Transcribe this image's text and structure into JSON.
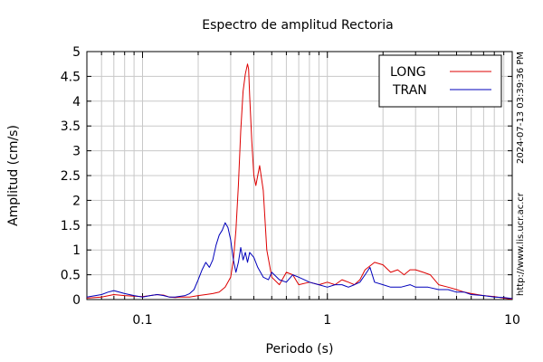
{
  "chart_data": {
    "type": "line",
    "title": "Espectro de amplitud Rectoria",
    "xlabel": "Periodo (s)",
    "ylabel": "Amplitud (cm/s)",
    "xscale": "log",
    "xlim": [
      0.05,
      10
    ],
    "ylim": [
      0,
      5
    ],
    "grid": true,
    "legend_position": "top-right",
    "x_tick_labels": [
      "0.1",
      "1",
      "10"
    ],
    "x_tick_values": [
      0.1,
      1,
      10
    ],
    "y_tick_labels": [
      "0",
      "0.5",
      "1",
      "1.5",
      "2",
      "2.5",
      "3",
      "3.5",
      "4",
      "4.5",
      "5"
    ],
    "y_tick_values": [
      0,
      0.5,
      1,
      1.5,
      2,
      2.5,
      3,
      3.5,
      4,
      4.5,
      5
    ],
    "series": [
      {
        "name": "LONG",
        "color": "#dd0000",
        "x": [
          0.05,
          0.06,
          0.07,
          0.08,
          0.09,
          0.1,
          0.11,
          0.12,
          0.13,
          0.14,
          0.15,
          0.16,
          0.18,
          0.2,
          0.22,
          0.24,
          0.26,
          0.28,
          0.3,
          0.31,
          0.32,
          0.33,
          0.34,
          0.35,
          0.36,
          0.37,
          0.375,
          0.38,
          0.39,
          0.4,
          0.41,
          0.42,
          0.43,
          0.45,
          0.47,
          0.5,
          0.55,
          0.6,
          0.65,
          0.7,
          0.8,
          0.9,
          1.0,
          1.1,
          1.2,
          1.3,
          1.4,
          1.5,
          1.6,
          1.8,
          2.0,
          2.2,
          2.4,
          2.6,
          2.8,
          3.0,
          3.3,
          3.6,
          4.0,
          4.5,
          5.0,
          5.5,
          6.0,
          7.0,
          8.0,
          9.0,
          10.0
        ],
        "y": [
          0.03,
          0.05,
          0.1,
          0.08,
          0.07,
          0.06,
          0.08,
          0.1,
          0.09,
          0.05,
          0.04,
          0.05,
          0.05,
          0.08,
          0.1,
          0.12,
          0.15,
          0.25,
          0.45,
          0.8,
          1.4,
          2.3,
          3.4,
          4.2,
          4.55,
          4.75,
          4.65,
          4.1,
          3.2,
          2.5,
          2.3,
          2.5,
          2.7,
          2.2,
          1.0,
          0.45,
          0.3,
          0.55,
          0.5,
          0.3,
          0.35,
          0.3,
          0.35,
          0.3,
          0.4,
          0.35,
          0.3,
          0.4,
          0.6,
          0.75,
          0.7,
          0.55,
          0.6,
          0.5,
          0.6,
          0.6,
          0.55,
          0.5,
          0.3,
          0.25,
          0.2,
          0.15,
          0.12,
          0.08,
          0.06,
          0.03,
          0.01
        ]
      },
      {
        "name": "TRAN",
        "color": "#0000bb",
        "x": [
          0.05,
          0.06,
          0.065,
          0.07,
          0.08,
          0.09,
          0.1,
          0.11,
          0.12,
          0.13,
          0.14,
          0.15,
          0.17,
          0.18,
          0.19,
          0.2,
          0.21,
          0.22,
          0.23,
          0.24,
          0.25,
          0.26,
          0.27,
          0.28,
          0.29,
          0.3,
          0.31,
          0.32,
          0.33,
          0.34,
          0.35,
          0.36,
          0.37,
          0.38,
          0.4,
          0.42,
          0.45,
          0.48,
          0.5,
          0.55,
          0.6,
          0.65,
          0.7,
          0.75,
          0.8,
          0.9,
          1.0,
          1.1,
          1.2,
          1.3,
          1.4,
          1.5,
          1.6,
          1.7,
          1.8,
          2.0,
          2.2,
          2.5,
          2.8,
          3.0,
          3.5,
          4.0,
          4.5,
          5.0,
          5.5,
          6.0,
          7.0,
          8.0,
          9.0,
          10.0
        ],
        "y": [
          0.05,
          0.1,
          0.15,
          0.18,
          0.12,
          0.08,
          0.05,
          0.08,
          0.1,
          0.08,
          0.05,
          0.05,
          0.08,
          0.12,
          0.2,
          0.4,
          0.6,
          0.75,
          0.65,
          0.8,
          1.1,
          1.3,
          1.4,
          1.55,
          1.45,
          1.2,
          0.8,
          0.55,
          0.75,
          1.05,
          0.8,
          0.95,
          0.75,
          0.95,
          0.85,
          0.65,
          0.45,
          0.4,
          0.55,
          0.4,
          0.35,
          0.5,
          0.45,
          0.4,
          0.35,
          0.3,
          0.25,
          0.3,
          0.3,
          0.25,
          0.3,
          0.35,
          0.5,
          0.65,
          0.35,
          0.3,
          0.25,
          0.25,
          0.3,
          0.25,
          0.25,
          0.2,
          0.2,
          0.15,
          0.15,
          0.1,
          0.08,
          0.05,
          0.04,
          0.02
        ]
      }
    ],
    "side_annotations": {
      "timestamp": "2024-07-13 03:39:36 PM",
      "url": "http://www.lis.ucr.ac.cr"
    }
  }
}
